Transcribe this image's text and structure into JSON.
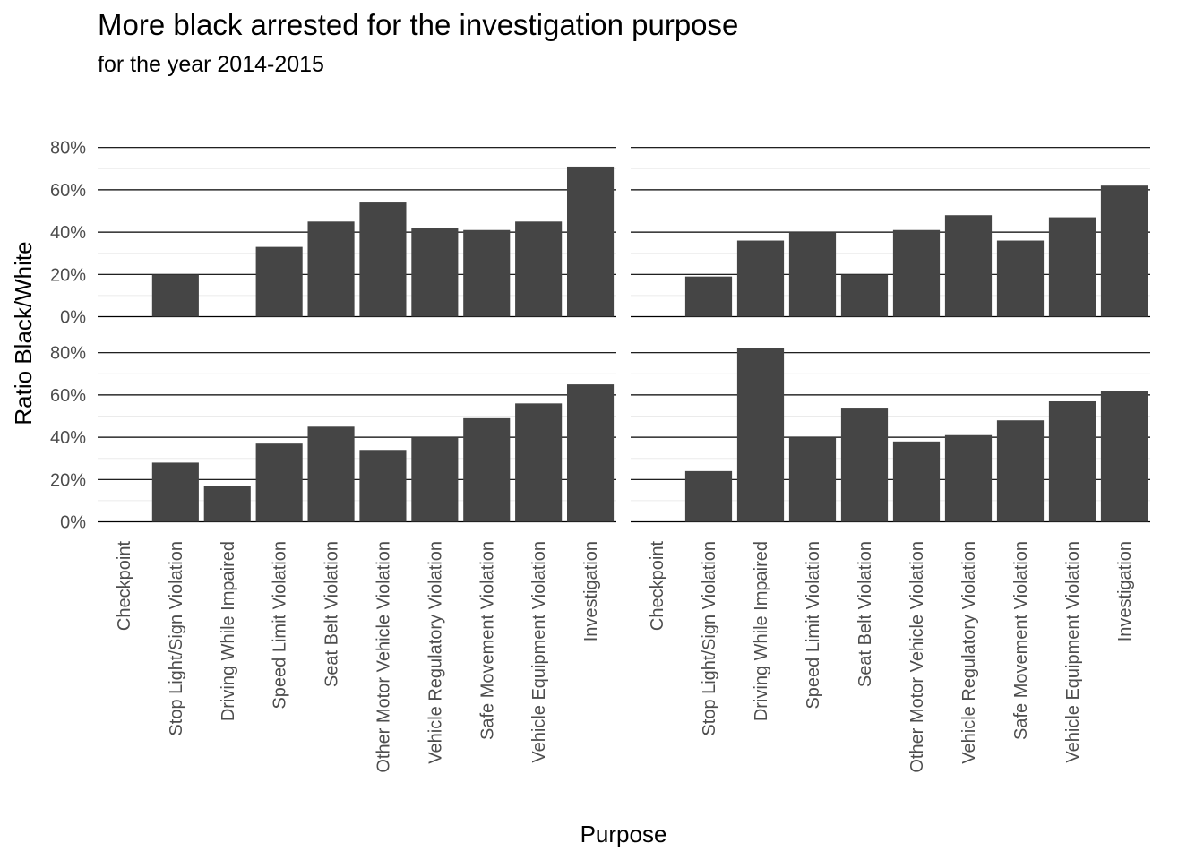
{
  "title": "More black arrested for the investigation purpose",
  "subtitle": "for the year 2014-2015",
  "chart_data": {
    "type": "bar",
    "title": "More black arrested for the investigation purpose",
    "subtitle": "for the year 2014-2015",
    "xlabel": "Purpose",
    "ylabel": "Ratio Black/White",
    "ylim": [
      0,
      80
    ],
    "y_ticks": [
      "0%",
      "20%",
      "40%",
      "60%",
      "80%"
    ],
    "grid": true,
    "bar_color": "#454545",
    "categories": [
      "Checkpoint",
      "Stop Light/Sign Violation",
      "Driving While Impaired",
      "Speed Limit Violation",
      "Seat Belt Violation",
      "Other Motor Vehicle Violation",
      "Vehicle Regulatory Violation",
      "Safe Movement Violation",
      "Vehicle Equipment Violation",
      "Investigation"
    ],
    "panels": [
      {
        "row": 1,
        "col": 1,
        "values": [
          0,
          20,
          0,
          33,
          45,
          54,
          42,
          41,
          45,
          71
        ]
      },
      {
        "row": 1,
        "col": 2,
        "values": [
          0,
          19,
          36,
          40,
          20,
          41,
          48,
          36,
          47,
          62
        ]
      },
      {
        "row": 2,
        "col": 1,
        "values": [
          0,
          28,
          17,
          37,
          45,
          34,
          40,
          49,
          56,
          65
        ]
      },
      {
        "row": 2,
        "col": 2,
        "values": [
          0,
          24,
          82,
          40,
          54,
          38,
          41,
          48,
          57,
          62
        ]
      }
    ]
  }
}
